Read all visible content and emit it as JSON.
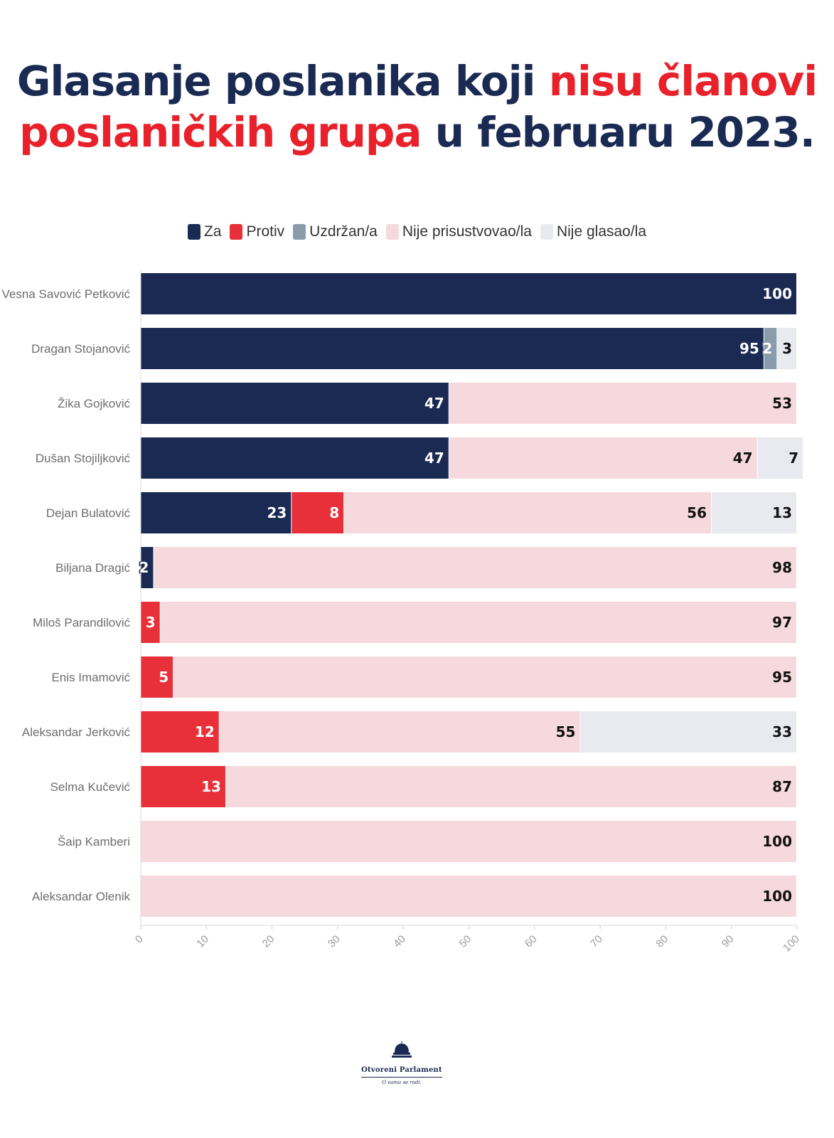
{
  "title": {
    "part1": "Glasanje poslanika koji ",
    "highlight1": "nisu članovi",
    "highlight2": "poslaničkih grupa",
    "part2": " u februaru 2023."
  },
  "logo": {
    "name": "Otvoreni Parlament",
    "tagline": "O vama se radi.",
    "icon": "parliament-dome-icon"
  },
  "chart_data": {
    "type": "bar",
    "orientation": "horizontal",
    "stacked": true,
    "title": "Glasanje poslanika koji nisu članovi poslaničkih grupa u februaru 2023.",
    "xlim": [
      0,
      100
    ],
    "xticks": [
      0,
      10,
      20,
      30,
      40,
      50,
      60,
      70,
      80,
      90,
      100
    ],
    "legend_position": "top-center",
    "grid": false,
    "categories": [
      "Vesna Savović Petković",
      "Dragan Stojanović",
      "Žika Gojković",
      "Dušan Stojiljković",
      "Dejan Bulatović",
      "Biljana Dragić",
      "Miloš Parandilović",
      "Enis Imamović",
      "Aleksandar Jerković",
      "Selma Kučević",
      "Šaip Kamberi",
      "Aleksandar Olenik"
    ],
    "series": [
      {
        "name": "Za",
        "color": "#1a2a52",
        "label_color": "#ffffff",
        "values": [
          100,
          95,
          47,
          47,
          23,
          2,
          0,
          0,
          0,
          0,
          0,
          0
        ]
      },
      {
        "name": "Protiv",
        "color": "#e8303a",
        "label_color": "#ffffff",
        "values": [
          0,
          0,
          0,
          0,
          8,
          0,
          3,
          5,
          12,
          13,
          0,
          0
        ]
      },
      {
        "name": "Uzdržan/a",
        "color": "#8a9bab",
        "label_color": "#ffffff",
        "values": [
          0,
          2,
          0,
          0,
          0,
          0,
          0,
          0,
          0,
          0,
          0,
          0
        ]
      },
      {
        "name": "Nije prisustvovao/la",
        "color": "#f6d9dc",
        "label_color": "#111111",
        "values": [
          0,
          0,
          53,
          47,
          56,
          98,
          97,
          95,
          55,
          87,
          100,
          100
        ]
      },
      {
        "name": "Nije glasao/la",
        "color": "#e9e9f0",
        "label_color": "#111111",
        "values": [
          0,
          3,
          0,
          7,
          13,
          0,
          0,
          0,
          33,
          0,
          0,
          0
        ]
      }
    ]
  }
}
